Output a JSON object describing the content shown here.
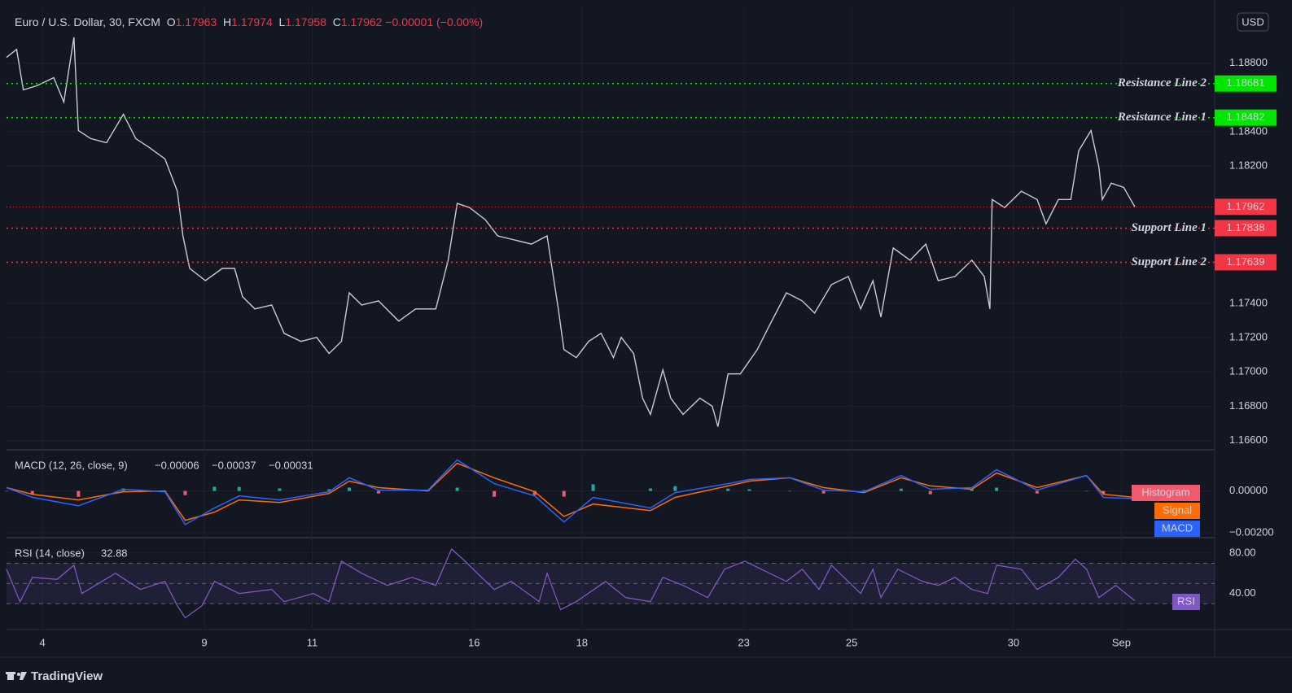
{
  "header": {
    "symbol": "Euro / U.S. Dollar, 30, FXCM",
    "o_label": "O",
    "open": 1.17963,
    "h_label": "H",
    "high": 1.17974,
    "l_label": "L",
    "low": 1.17958,
    "c_label": "C",
    "close": 1.17962,
    "change": "−0.00001 (−0.00%)"
  },
  "currency": "USD",
  "brand": "TradingView",
  "chart_data": [
    {
      "type": "line",
      "color": "#c8ccd6",
      "xlim": [
        0,
        1075
      ],
      "ylim": [
        1.1656,
        1.1913
      ],
      "grid": true,
      "xticks": [
        {
          "value": 32,
          "label": "4"
        },
        {
          "value": 176,
          "label": "9"
        },
        {
          "value": 272,
          "label": "11"
        },
        {
          "value": 416,
          "label": "16"
        },
        {
          "value": 512,
          "label": "18"
        },
        {
          "value": 656,
          "label": "23"
        },
        {
          "value": 752,
          "label": "25"
        },
        {
          "value": 896,
          "label": "30"
        },
        {
          "value": 992,
          "label": "Sep"
        }
      ],
      "yticks": [
        {
          "value": 1.166,
          "label": "1.16600"
        },
        {
          "value": 1.168,
          "label": "1.16800"
        },
        {
          "value": 1.17,
          "label": "1.17000"
        },
        {
          "value": 1.172,
          "label": "1.17200"
        },
        {
          "value": 1.174,
          "label": "1.17400"
        },
        {
          "value": 1.182,
          "label": "1.18200"
        },
        {
          "value": 1.184,
          "label": "1.18400"
        },
        {
          "value": 1.188,
          "label": "1.18800"
        }
      ],
      "x": [
        0,
        9,
        15,
        27,
        42,
        51,
        60,
        64,
        75,
        89,
        104,
        115,
        126,
        141,
        152,
        157,
        163,
        177,
        192,
        203,
        210,
        221,
        236,
        247,
        262,
        276,
        287,
        298,
        305,
        316,
        331,
        349,
        364,
        382,
        393,
        401,
        412,
        426,
        437,
        452,
        467,
        481,
        491,
        496,
        507,
        518,
        529,
        540,
        547,
        558,
        566,
        573,
        584,
        591,
        602,
        617,
        628,
        633,
        642,
        653,
        668,
        679,
        694,
        708,
        719,
        734,
        749,
        760,
        771,
        778,
        789,
        804,
        818,
        829,
        844,
        859,
        870,
        875,
        877,
        888,
        903,
        917,
        925,
        936,
        947,
        954,
        965,
        972,
        975,
        983,
        994,
        1004
      ],
      "values": [
        1.18833,
        1.1888,
        1.18644,
        1.18668,
        1.18715,
        1.18573,
        1.18951,
        1.18407,
        1.1836,
        1.18336,
        1.18502,
        1.1836,
        1.18313,
        1.18242,
        1.18053,
        1.17793,
        1.17603,
        1.17532,
        1.17603,
        1.17603,
        1.17438,
        1.17367,
        1.1739,
        1.17225,
        1.17178,
        1.17201,
        1.17107,
        1.17178,
        1.17461,
        1.1739,
        1.17414,
        1.17296,
        1.17367,
        1.17367,
        1.17651,
        1.17982,
        1.17958,
        1.17887,
        1.17793,
        1.17769,
        1.17745,
        1.17793,
        1.17367,
        1.1713,
        1.17083,
        1.17178,
        1.17225,
        1.17083,
        1.17201,
        1.17107,
        1.16847,
        1.16752,
        1.17012,
        1.16847,
        1.16752,
        1.16847,
        1.168,
        1.16681,
        1.16988,
        1.16988,
        1.1713,
        1.17272,
        1.17461,
        1.17414,
        1.17343,
        1.17509,
        1.17556,
        1.17367,
        1.17532,
        1.1732,
        1.17722,
        1.17651,
        1.17745,
        1.17532,
        1.17556,
        1.17651,
        1.17556,
        1.17367,
        1.18005,
        1.17958,
        1.18053,
        1.18005,
        1.17863,
        1.18005,
        1.18005,
        1.18289,
        1.18407,
        1.18195,
        1.18005,
        1.181,
        1.18076,
        1.17962
      ],
      "levels": [
        {
          "name": "Resistance Line 2",
          "value": 1.18681,
          "color": "#00e600"
        },
        {
          "name": "Resistance Line 1",
          "value": 1.18482,
          "color": "#00e600"
        },
        {
          "name": "Support Line 1",
          "value": 1.17838,
          "color": "#f23645"
        },
        {
          "name": "Support Line 2",
          "value": 1.17639,
          "color": "#f23645"
        }
      ],
      "last_price": 1.17962,
      "last_color": "#f23645"
    },
    {
      "type": "macd",
      "title": "MACD (12, 26, close, 9)",
      "xlim": [
        0,
        1075
      ],
      "ylim": [
        -0.0022,
        0.0017
      ],
      "yticks": [
        {
          "value": 0,
          "label": "0.00000"
        },
        {
          "value": -0.002,
          "label": "−0.00200"
        }
      ],
      "readout": [
        {
          "text": "−0.00006",
          "color": "#f23645"
        },
        {
          "text": "−0.00037",
          "color": "#2962ff"
        },
        {
          "text": "−0.00031",
          "color": "#ff6d00"
        }
      ],
      "x": [
        0,
        23,
        64,
        104,
        141,
        159,
        185,
        207,
        243,
        287,
        305,
        331,
        375,
        401,
        434,
        470,
        496,
        522,
        573,
        595,
        642,
        661,
        697,
        727,
        763,
        796,
        822,
        859,
        881,
        917,
        961,
        976,
        1004
      ],
      "series": [
        {
          "name": "Histogram",
          "color": "#f05a6e",
          "up_color": "#26a69a",
          "values": [
            0,
            -0.00015,
            -0.00028,
            0.00012,
            -4e-05,
            -0.0002,
            0.0002,
            0.00019,
            0.00012,
            8e-05,
            0.00016,
            -0.00012,
            4e-05,
            0.00016,
            -0.00028,
            -0.0002,
            -0.00027,
            0.00032,
            0.00012,
            0.00023,
            0.00011,
            8e-05,
            0,
            -0.00012,
            4e-05,
            0.00011,
            -0.00016,
            8e-05,
            0.00016,
            -0.00012,
            0,
            -0.00015,
            -6e-05
          ]
        },
        {
          "name": "Signal",
          "color": "#ff6d00",
          "values": [
            0.00016,
            -0.00016,
            -0.00043,
            -4e-05,
            0,
            -0.00141,
            -0.00102,
            -0.00043,
            -0.00055,
            -0.00012,
            0.00047,
            0.00016,
            0,
            0.00133,
            0.00063,
            -4e-05,
            -0.00122,
            -0.00063,
            -0.00094,
            -0.00031,
            0.00024,
            0.00047,
            0.00063,
            0.00016,
            -8e-05,
            0.00063,
            0.00024,
            8e-05,
            0.00086,
            0.00016,
            0.00074,
            -0.00016,
            -0.00031
          ]
        },
        {
          "name": "MACD",
          "color": "#2962ff",
          "values": [
            0.00016,
            -0.00031,
            -0.00071,
            8e-05,
            -4e-05,
            -0.00161,
            -0.00082,
            -0.00024,
            -0.00043,
            -4e-05,
            0.00063,
            4e-05,
            4e-05,
            0.00149,
            0.00035,
            -0.00024,
            -0.00149,
            -0.00031,
            -0.00082,
            -8e-05,
            0.00035,
            0.00055,
            0.00063,
            4e-05,
            -4e-05,
            0.00074,
            8e-05,
            0.00016,
            0.00102,
            4e-05,
            0.00074,
            -0.00031,
            -0.00037
          ]
        }
      ]
    },
    {
      "type": "rsi",
      "title": "RSI (14, close)",
      "readout": 32.88,
      "name": "RSI",
      "color": "#7e57c2",
      "xlim": [
        0,
        1075
      ],
      "ylim": [
        6,
        92
      ],
      "yticks": [
        {
          "value": 80,
          "label": "80.00"
        },
        {
          "value": 40,
          "label": "40.00"
        }
      ],
      "bands": [
        70,
        50,
        30
      ],
      "x": [
        0,
        12,
        23,
        45,
        60,
        67,
        97,
        119,
        141,
        152,
        159,
        174,
        185,
        207,
        236,
        247,
        273,
        287,
        298,
        316,
        339,
        361,
        382,
        396,
        408,
        419,
        434,
        449,
        474,
        481,
        493,
        507,
        533,
        551,
        573,
        584,
        602,
        624,
        639,
        657,
        679,
        694,
        708,
        723,
        734,
        760,
        771,
        778,
        793,
        815,
        829,
        844,
        859,
        873,
        881,
        903,
        917,
        936,
        951,
        961,
        972,
        987,
        1004
      ],
      "values": [
        64,
        32,
        56,
        54,
        68,
        40,
        60,
        44,
        52,
        28,
        16,
        28,
        52,
        40,
        44,
        32,
        40,
        32,
        72,
        60,
        48,
        56,
        48,
        84,
        72,
        60,
        44,
        52,
        32,
        60,
        24,
        32,
        52,
        36,
        32,
        56,
        48,
        36,
        64,
        72,
        60,
        52,
        64,
        44,
        68,
        40,
        64,
        36,
        64,
        52,
        48,
        56,
        44,
        40,
        68,
        64,
        44,
        56,
        74,
        64,
        36,
        48,
        32.88
      ]
    }
  ]
}
